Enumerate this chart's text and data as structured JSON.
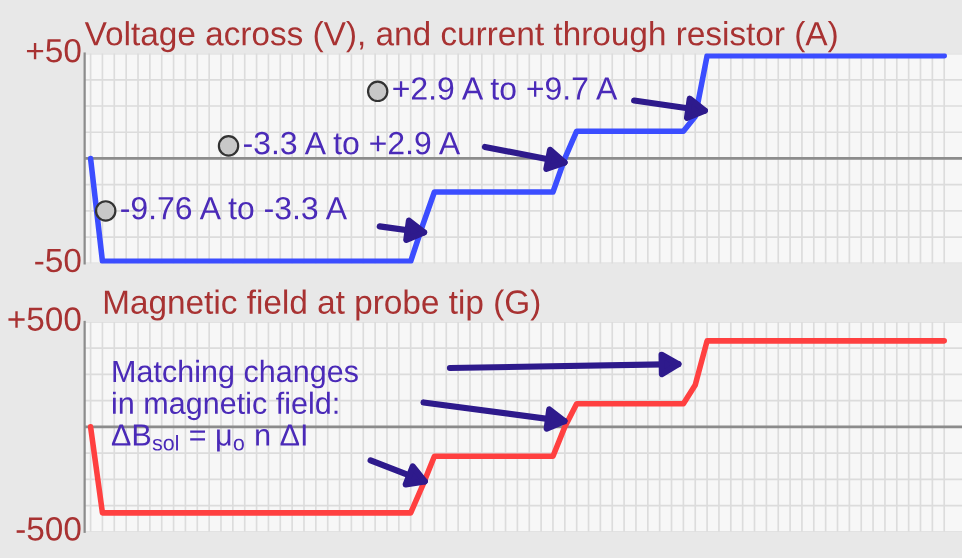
{
  "chart_data": [
    {
      "type": "line",
      "title": "Voltage across (V), and current through resistor (A)",
      "categories": [
        null,
        null,
        null,
        null,
        null,
        null,
        null,
        null,
        null,
        null,
        null,
        null,
        null,
        null,
        null,
        null,
        null,
        null,
        null,
        null,
        null,
        null,
        null,
        null,
        null,
        null,
        null,
        null,
        null,
        null,
        null,
        null,
        null,
        null,
        null,
        null,
        null,
        null,
        null,
        null,
        null,
        null,
        null,
        null,
        null,
        null,
        null,
        null,
        null,
        null,
        null,
        null,
        null,
        null,
        null,
        null,
        null,
        null,
        null,
        null,
        null,
        null,
        null,
        null,
        null,
        null,
        null,
        null,
        null,
        null,
        null,
        null,
        null
      ],
      "series": [
        {
          "color": "#3b4dff",
          "values": [
            0,
            -49,
            -49,
            -49,
            -49,
            -49,
            -49,
            -49,
            -49,
            -49,
            -49,
            -49,
            -49,
            -49,
            -49,
            -49,
            -49,
            -49,
            -49,
            -49,
            -49,
            -49,
            -49,
            -49,
            -49,
            -49,
            -49,
            -49,
            -32,
            -16,
            -16,
            -16,
            -16,
            -16,
            -16,
            -16,
            -16,
            -16,
            -16,
            -16,
            0,
            13,
            13,
            13,
            13,
            13,
            13,
            13,
            13,
            13,
            13,
            20,
            49,
            49,
            49,
            49,
            49,
            49,
            49,
            49,
            49,
            49,
            49,
            49,
            49,
            49,
            49,
            49,
            49,
            49,
            49,
            49,
            49
          ]
        }
      ],
      "ylim": [
        -50,
        50
      ],
      "yticks": [
        {
          "value": 50,
          "label": "+50"
        },
        {
          "value": -50,
          "label": "-50"
        }
      ],
      "tick_labels": "y",
      "grid": true,
      "line_style": "solid",
      "ref_lines": [
        {
          "axis": "y",
          "value": 0,
          "color": "#8c8c8c"
        }
      ],
      "annotations": [
        "+2.9 A to +9.7 A",
        "-3.3 A to +2.9 A",
        "-9.76 A to -3.3 A"
      ]
    },
    {
      "type": "line",
      "title": "Magnetic field at probe tip (G)",
      "categories": [
        null,
        null,
        null,
        null,
        null,
        null,
        null,
        null,
        null,
        null,
        null,
        null,
        null,
        null,
        null,
        null,
        null,
        null,
        null,
        null,
        null,
        null,
        null,
        null,
        null,
        null,
        null,
        null,
        null,
        null,
        null,
        null,
        null,
        null,
        null,
        null,
        null,
        null,
        null,
        null,
        null,
        null,
        null,
        null,
        null,
        null,
        null,
        null,
        null,
        null,
        null,
        null,
        null,
        null,
        null,
        null,
        null,
        null,
        null,
        null,
        null,
        null,
        null,
        null,
        null,
        null,
        null,
        null,
        null,
        null,
        null,
        null,
        null
      ],
      "series": [
        {
          "color": "#ff4040",
          "values": [
            0,
            -410,
            -410,
            -410,
            -410,
            -410,
            -410,
            -410,
            -410,
            -410,
            -410,
            -410,
            -410,
            -410,
            -410,
            -410,
            -410,
            -410,
            -410,
            -410,
            -410,
            -410,
            -410,
            -410,
            -410,
            -410,
            -410,
            -410,
            -280,
            -140,
            -140,
            -140,
            -140,
            -140,
            -140,
            -140,
            -140,
            -140,
            -140,
            -140,
            0,
            110,
            110,
            110,
            110,
            110,
            110,
            110,
            110,
            110,
            110,
            200,
            410,
            410,
            410,
            410,
            410,
            410,
            410,
            410,
            410,
            410,
            410,
            410,
            410,
            410,
            410,
            410,
            410,
            410,
            410,
            410,
            410
          ]
        }
      ],
      "ylim": [
        -500,
        500
      ],
      "yticks": [
        {
          "value": 500,
          "label": "+500"
        },
        {
          "value": -500,
          "label": "-500"
        }
      ],
      "tick_labels": "y",
      "grid": true,
      "line_style": "solid",
      "ref_lines": [
        {
          "axis": "y",
          "value": 0,
          "color": "#8c8c8c"
        }
      ],
      "annotations": [
        "Matching changes\nin magnetic field:\nΔB$_{sol}$ = μ$_{o}$ n ΔI"
      ]
    }
  ]
}
